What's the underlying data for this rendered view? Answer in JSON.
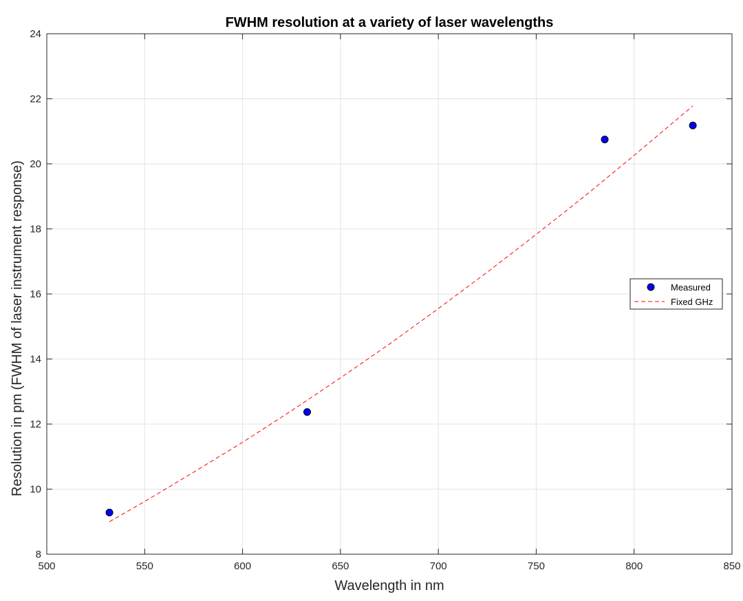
{
  "chart_data": {
    "type": "scatter",
    "title": "FWHM resolution at a variety of laser wavelengths",
    "xlabel": "Wavelength in nm",
    "ylabel": "Resolution in pm (FWHM of laser instrument response)",
    "xlim": [
      500,
      850
    ],
    "ylim": [
      8,
      24
    ],
    "xticks": [
      500,
      550,
      600,
      650,
      700,
      750,
      800,
      850
    ],
    "yticks": [
      8,
      10,
      12,
      14,
      16,
      18,
      20,
      22,
      24
    ],
    "grid": true,
    "legend_position": "right",
    "series": [
      {
        "name": "Measured",
        "kind": "scatter",
        "color": "#0000ff",
        "edge_color": "#000000",
        "x": [
          532,
          633,
          785,
          830
        ],
        "y": [
          9.28,
          12.37,
          20.75,
          21.18
        ]
      },
      {
        "name": "Fixed GHz",
        "kind": "line",
        "style": "dashed",
        "color": "#ff0000",
        "x": [
          532,
          550,
          575,
          600,
          625,
          650,
          675,
          700,
          725,
          750,
          775,
          800,
          830
        ],
        "y": [
          9.0,
          9.62,
          10.52,
          11.44,
          12.41,
          13.42,
          14.46,
          15.55,
          16.67,
          17.83,
          19.02,
          20.26,
          21.78
        ]
      }
    ]
  }
}
